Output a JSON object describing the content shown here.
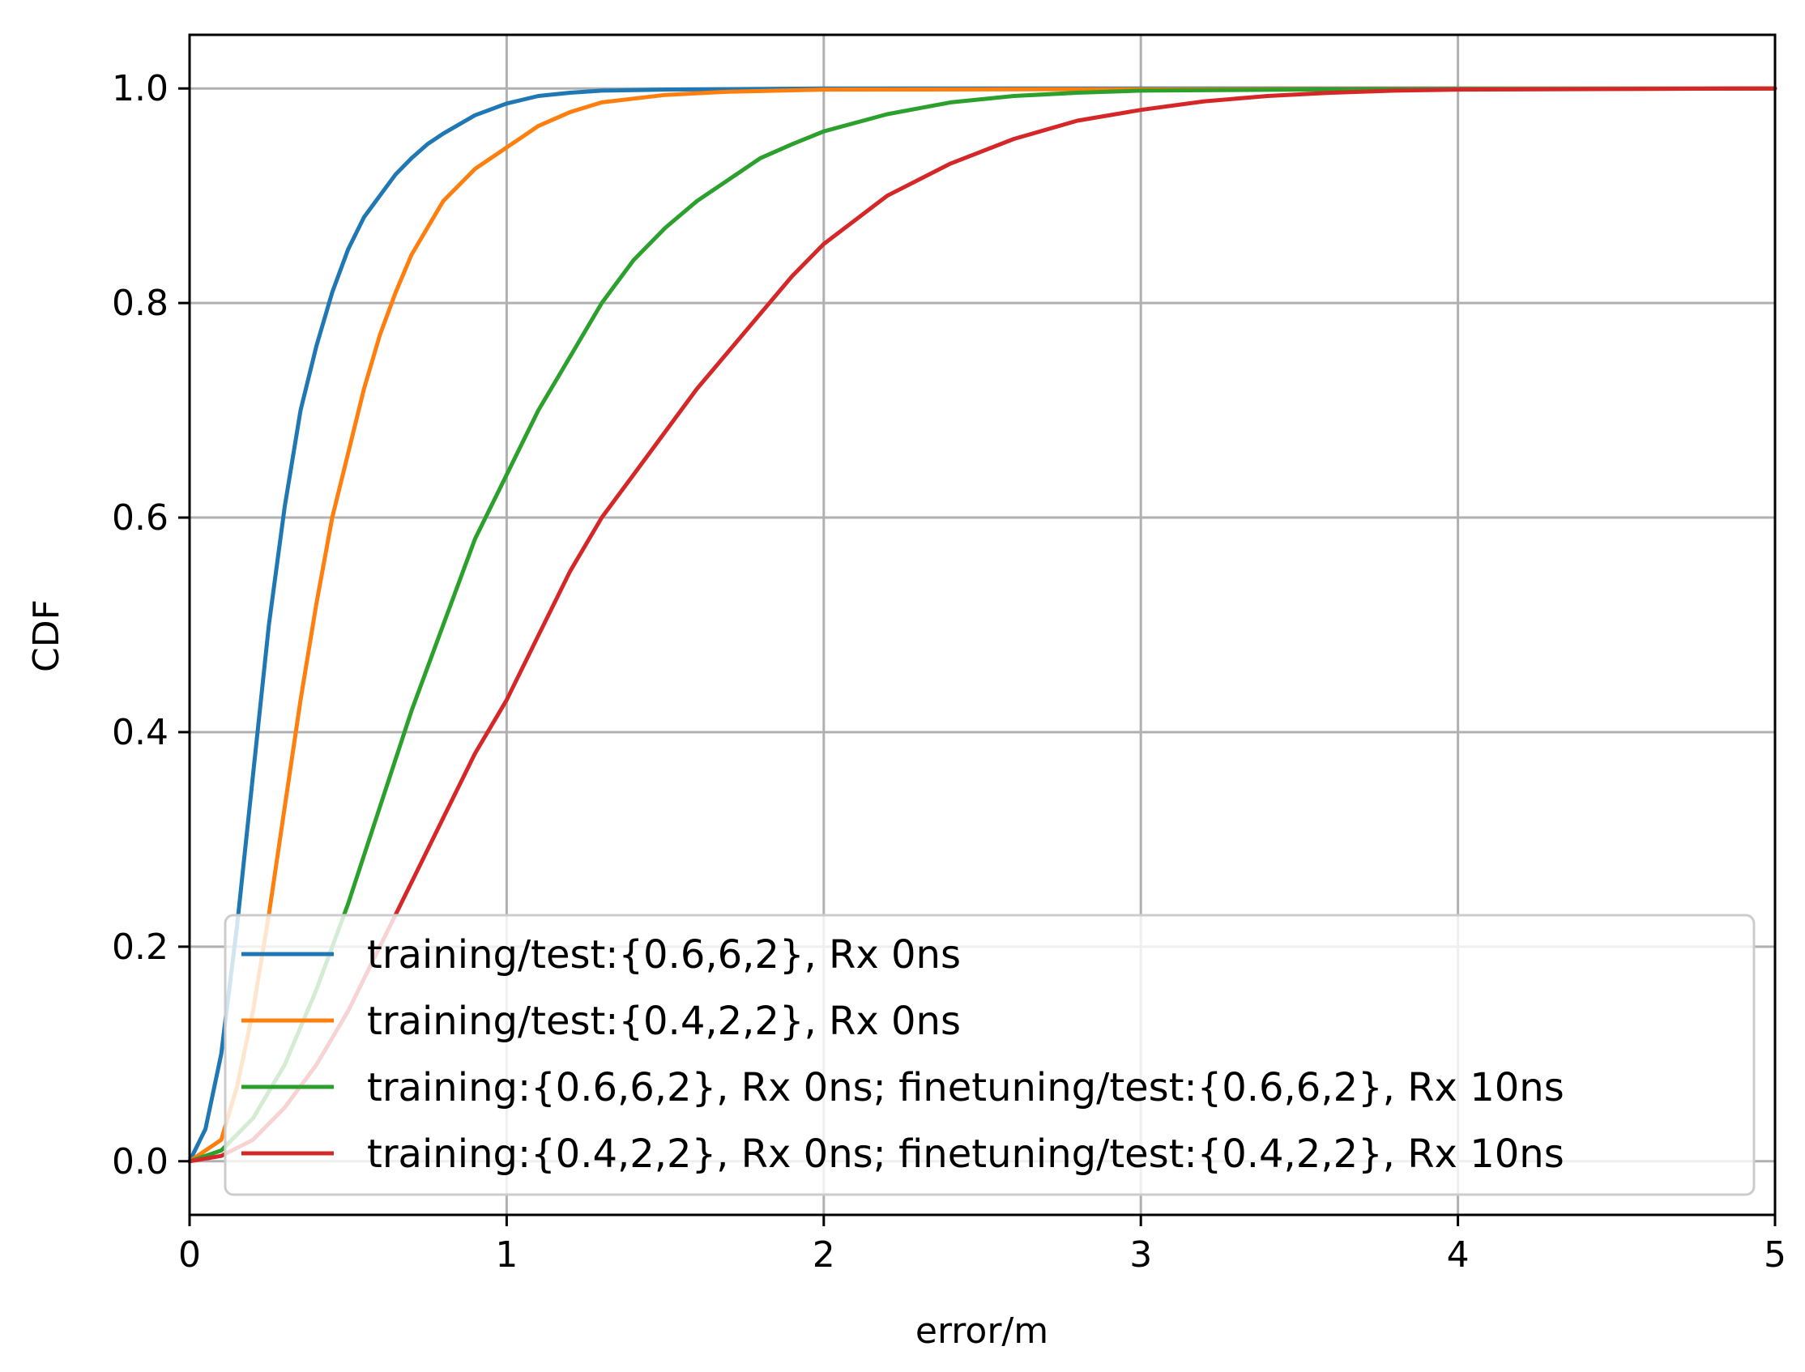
{
  "chart_data": {
    "type": "line",
    "xlabel": "error/m",
    "ylabel": "CDF",
    "xlim": [
      0,
      5
    ],
    "ylim": [
      -0.05,
      1.05
    ],
    "x_ticks": [
      0,
      1,
      2,
      3,
      4,
      5
    ],
    "x_tick_labels": [
      "0",
      "1",
      "2",
      "3",
      "4",
      "5"
    ],
    "y_ticks": [
      0.0,
      0.2,
      0.4,
      0.6,
      0.8,
      1.0
    ],
    "y_tick_labels": [
      "0.0",
      "0.2",
      "0.4",
      "0.6",
      "0.8",
      "1.0"
    ],
    "grid": true,
    "legend_position": "lower-right",
    "series": [
      {
        "name": "training/test:{0.6,6,2}, Rx 0ns",
        "color": "#1f77b4",
        "x": [
          0,
          0.05,
          0.1,
          0.15,
          0.2,
          0.25,
          0.3,
          0.35,
          0.4,
          0.45,
          0.5,
          0.55,
          0.6,
          0.65,
          0.7,
          0.75,
          0.8,
          0.9,
          1.0,
          1.1,
          1.2,
          1.3,
          1.5,
          2.0,
          5.0
        ],
        "y": [
          0,
          0.03,
          0.1,
          0.22,
          0.36,
          0.5,
          0.61,
          0.7,
          0.76,
          0.81,
          0.85,
          0.88,
          0.9,
          0.92,
          0.935,
          0.948,
          0.958,
          0.975,
          0.986,
          0.993,
          0.996,
          0.998,
          0.999,
          1.0,
          1.0
        ]
      },
      {
        "name": "training/test:{0.4,2,2}, Rx 0ns",
        "color": "#ff7f0e",
        "x": [
          0,
          0.1,
          0.15,
          0.2,
          0.25,
          0.3,
          0.35,
          0.4,
          0.45,
          0.5,
          0.55,
          0.6,
          0.65,
          0.7,
          0.75,
          0.8,
          0.9,
          1.0,
          1.1,
          1.2,
          1.3,
          1.5,
          1.7,
          2.0,
          5.0
        ],
        "y": [
          0,
          0.02,
          0.07,
          0.14,
          0.23,
          0.33,
          0.43,
          0.52,
          0.6,
          0.66,
          0.72,
          0.77,
          0.81,
          0.845,
          0.87,
          0.895,
          0.925,
          0.945,
          0.965,
          0.978,
          0.987,
          0.994,
          0.997,
          0.999,
          1.0
        ]
      },
      {
        "name": "training:{0.6,6,2}, Rx 0ns; finetuning/test:{0.6,6,2}, Rx 10ns",
        "color": "#2ca02c",
        "x": [
          0,
          0.1,
          0.2,
          0.3,
          0.4,
          0.5,
          0.6,
          0.7,
          0.8,
          0.9,
          1.0,
          1.1,
          1.2,
          1.3,
          1.4,
          1.5,
          1.6,
          1.7,
          1.8,
          1.9,
          2.0,
          2.2,
          2.4,
          2.6,
          2.8,
          3.0,
          3.5,
          5.0
        ],
        "y": [
          0,
          0.01,
          0.04,
          0.09,
          0.16,
          0.24,
          0.33,
          0.42,
          0.5,
          0.58,
          0.64,
          0.7,
          0.75,
          0.8,
          0.84,
          0.87,
          0.895,
          0.915,
          0.935,
          0.948,
          0.96,
          0.976,
          0.987,
          0.993,
          0.996,
          0.998,
          0.999,
          1.0
        ]
      },
      {
        "name": "training:{0.4,2,2}, Rx 0ns; finetuning/test:{0.4,2,2}, Rx 10ns",
        "color": "#d62728",
        "x": [
          0,
          0.1,
          0.2,
          0.3,
          0.4,
          0.5,
          0.6,
          0.7,
          0.8,
          0.9,
          1.0,
          1.1,
          1.2,
          1.3,
          1.4,
          1.5,
          1.6,
          1.7,
          1.8,
          1.9,
          2.0,
          2.2,
          2.4,
          2.6,
          2.8,
          3.0,
          3.2,
          3.4,
          3.6,
          3.8,
          4.0,
          5.0
        ],
        "y": [
          0,
          0.005,
          0.02,
          0.05,
          0.09,
          0.14,
          0.2,
          0.26,
          0.32,
          0.38,
          0.43,
          0.49,
          0.55,
          0.6,
          0.64,
          0.68,
          0.72,
          0.755,
          0.79,
          0.825,
          0.855,
          0.9,
          0.93,
          0.953,
          0.97,
          0.98,
          0.988,
          0.993,
          0.996,
          0.998,
          0.999,
          1.0
        ]
      }
    ]
  }
}
